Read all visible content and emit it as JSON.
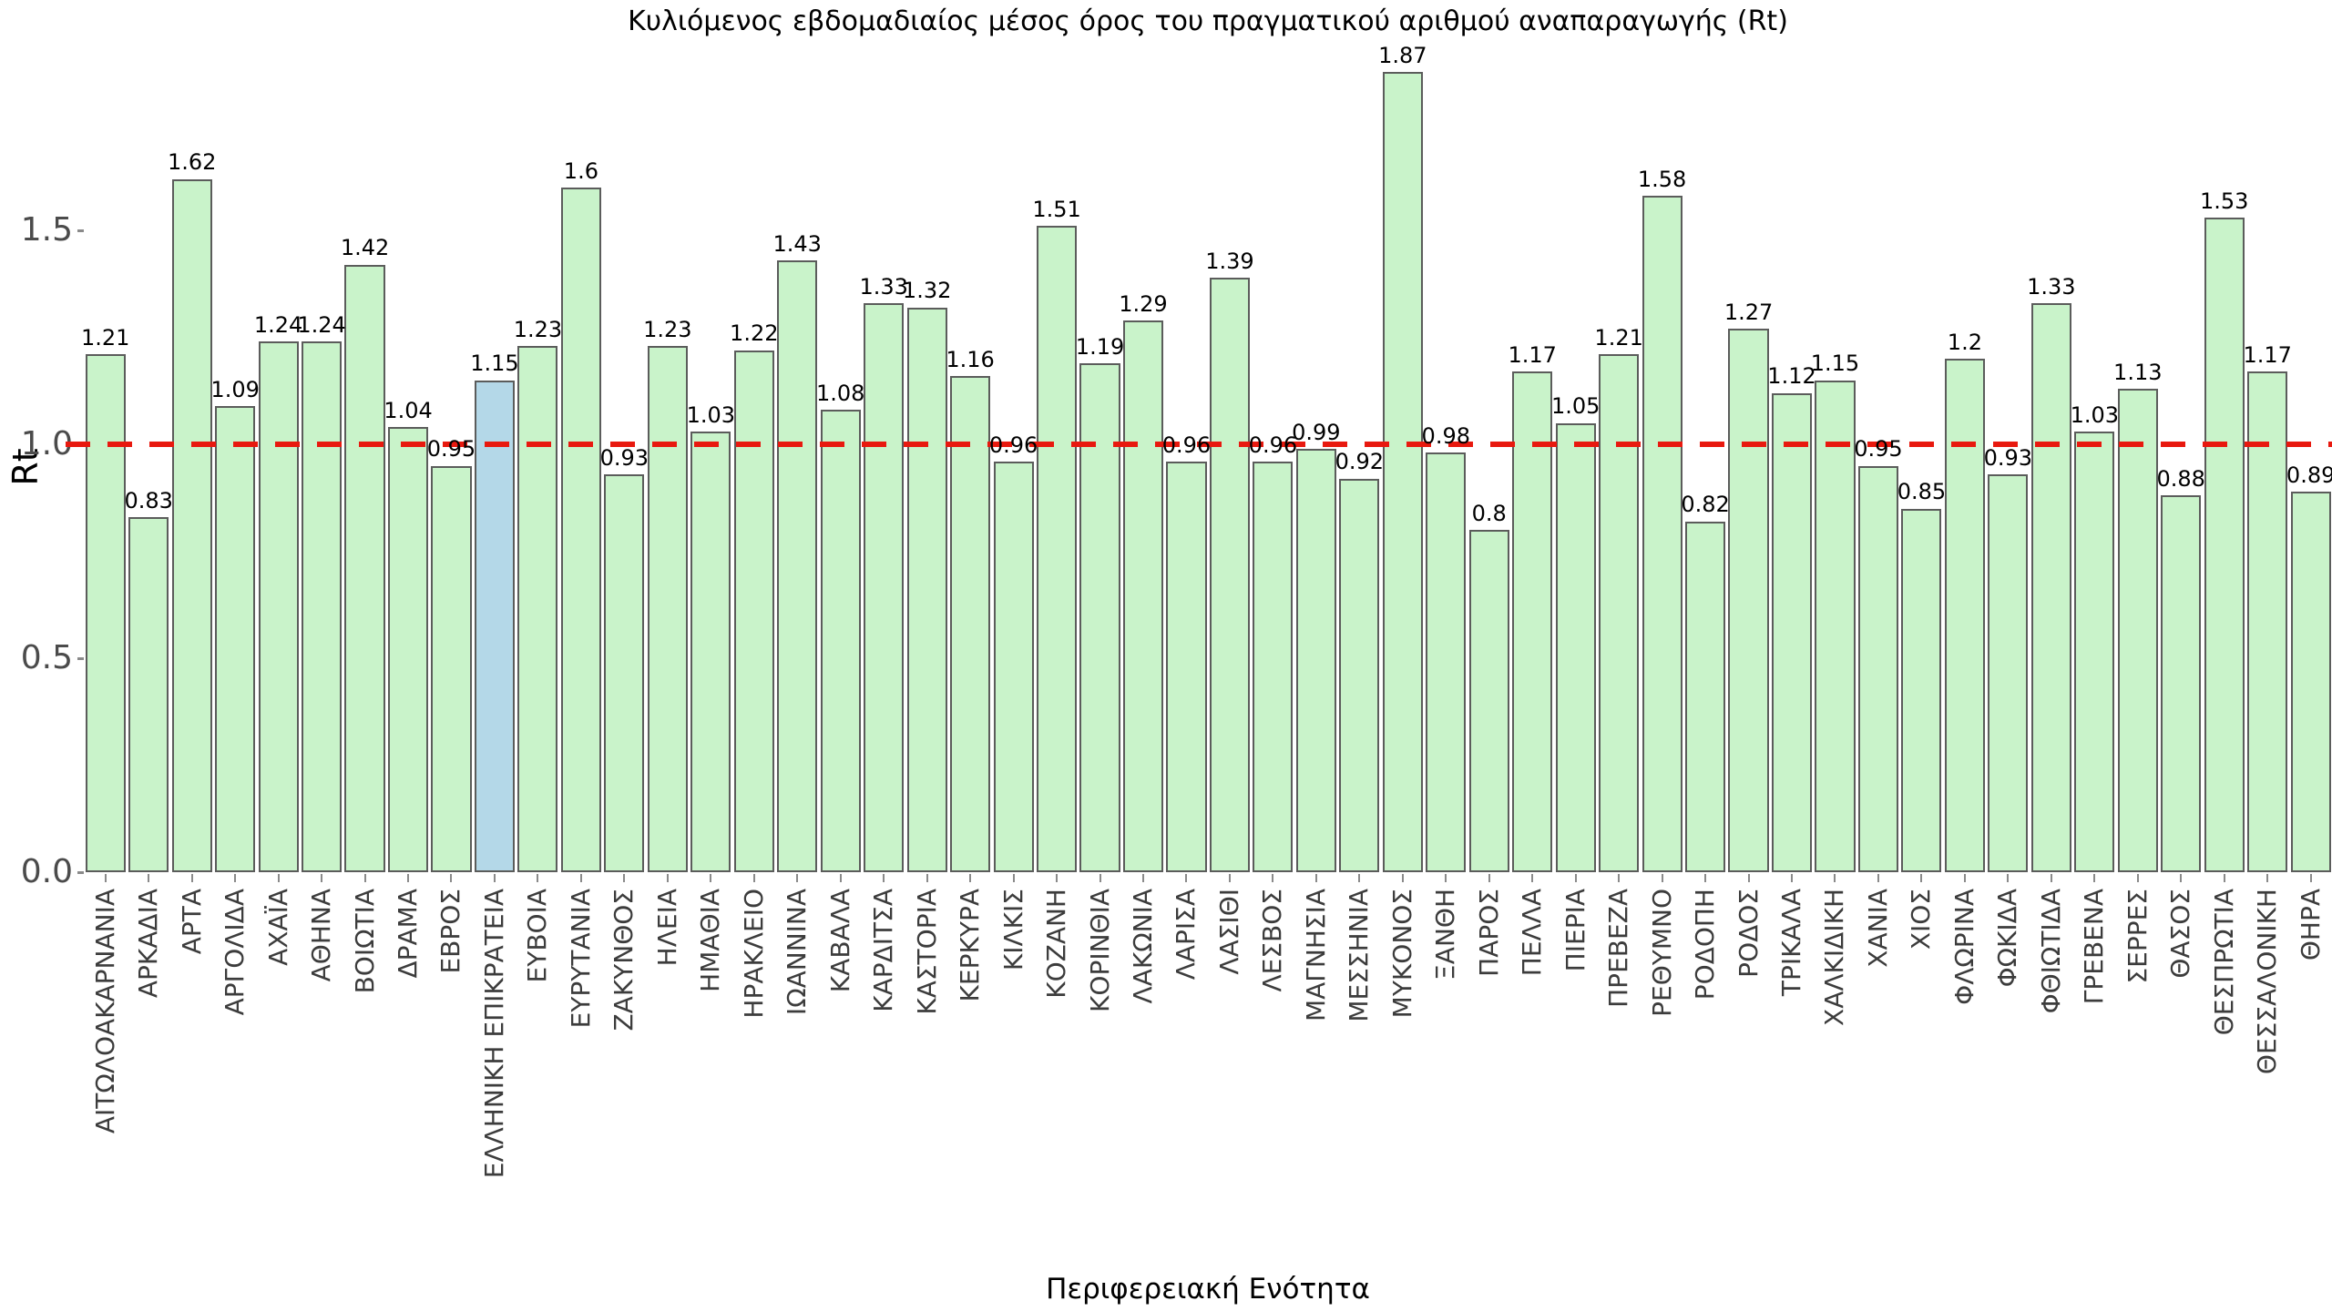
{
  "page": {
    "background": "#ffffff"
  },
  "chart_data": {
    "type": "bar",
    "title": "Κυλιόμενος εβδομαδιαίος μέσος όρος του πραγματικού αριθμού αναπαραγωγής (Rt)",
    "xlabel": "Περιφερειακή Ενότητα",
    "ylabel": "Rt",
    "yticks": [
      "0.0",
      "0.5",
      "1.0",
      "1.5"
    ],
    "ylim": [
      0,
      2.04
    ],
    "grid": false,
    "legend": "none",
    "reference_line": {
      "y": 1.0,
      "style": "dashed",
      "color": "#e8190f"
    },
    "bar_fill": "#c9f3ca",
    "bar_fill_highlight": "#b4d8e8",
    "bar_edge": "#5b5c5b",
    "highlight_category": "ΕΛΛΗΝΙΚΗ ΕΠΙΚΡΑΤΕΙΑ",
    "categories": [
      "ΑΙΤΩΛΟΑΚΑΡΝΑΝΙΑ",
      "ΑΡΚΑΔΙΑ",
      "ΑΡΤΑ",
      "ΑΡΓΟΛΙΔΑ",
      "ΑΧΑΪΑ",
      "ΑΘΗΝΑ",
      "ΒΟΙΩΤΙΑ",
      "ΔΡΑΜΑ",
      "ΕΒΡΟΣ",
      "ΕΛΛΗΝΙΚΗ ΕΠΙΚΡΑΤΕΙΑ",
      "ΕΥΒΟΙΑ",
      "ΕΥΡΥΤΑΝΙΑ",
      "ΖΑΚΥΝΘΟΣ",
      "ΗΛΕΙΑ",
      "ΗΜΑΘΙΑ",
      "ΗΡΑΚΛΕΙΟ",
      "ΙΩΑΝΝΙΝΑ",
      "ΚΑΒΑΛΑ",
      "ΚΑΡΔΙΤΣΑ",
      "ΚΑΣΤΟΡΙΑ",
      "ΚΕΡΚΥΡΑ",
      "ΚΙΛΚΙΣ",
      "ΚΟΖΑΝΗ",
      "ΚΟΡΙΝΘΙΑ",
      "ΛΑΚΩΝΙΑ",
      "ΛΑΡΙΣΑ",
      "ΛΑΣΙΘΙ",
      "ΛΕΣΒΟΣ",
      "ΜΑΓΝΗΣΙΑ",
      "ΜΕΣΣΗΝΙΑ",
      "ΜΥΚΟΝΟΣ",
      "ΞΑΝΘΗ",
      "ΠΑΡΟΣ",
      "ΠΕΛΛΑ",
      "ΠΙΕΡΙΑ",
      "ΠΡΕΒΕΖΑ",
      "ΡΕΘΥΜΝΟ",
      "ΡΟΔΟΠΗ",
      "ΡΟΔΟΣ",
      "ΤΡΙΚΑΛΑ",
      "ΧΑΛΚΙΔΙΚΗ",
      "ΧΑΝΙΑ",
      "ΧΙΟΣ",
      "ΦΛΩΡΙΝΑ",
      "ΦΩΚΙΔΑ",
      "ΦΘΙΩΤΙΔΑ",
      "ΓΡΕΒΕΝΑ",
      "ΣΕΡΡΕΣ",
      "ΘΑΣΟΣ",
      "ΘΕΣΠΡΩΤΙΑ",
      "ΘΕΣΣΑΛΟΝΙΚΗ",
      "ΘΗΡΑ"
    ],
    "values": [
      1.21,
      0.83,
      1.62,
      1.09,
      1.24,
      1.24,
      1.42,
      1.04,
      0.95,
      1.15,
      1.23,
      1.6,
      0.93,
      1.23,
      1.03,
      1.22,
      1.43,
      1.08,
      1.33,
      1.32,
      1.16,
      0.96,
      1.51,
      1.19,
      1.29,
      0.96,
      1.39,
      0.96,
      0.99,
      0.92,
      1.87,
      0.98,
      0.8,
      1.17,
      1.05,
      1.21,
      1.58,
      0.82,
      1.27,
      1.12,
      1.15,
      0.95,
      0.85,
      1.2,
      0.93,
      1.33,
      1.03,
      1.13,
      0.88,
      1.53,
      1.17,
      0.89
    ]
  }
}
